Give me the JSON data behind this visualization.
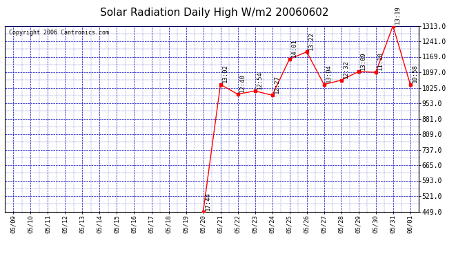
{
  "title": "Solar Radiation Daily High W/m2 20060602",
  "copyright": "Copyright 2006 Cantronics.com",
  "x_labels": [
    "05/09",
    "05/10",
    "05/11",
    "05/12",
    "05/13",
    "05/14",
    "05/15",
    "05/16",
    "05/17",
    "05/18",
    "05/19",
    "05/20",
    "05/21",
    "05/22",
    "05/23",
    "05/24",
    "05/25",
    "05/26",
    "05/27",
    "05/28",
    "05/29",
    "05/30",
    "05/31",
    "06/01"
  ],
  "data_points": [
    {
      "date": "05/20",
      "value": 449.0,
      "label": "17:44"
    },
    {
      "date": "05/21",
      "value": 1040.0,
      "label": "13:02"
    },
    {
      "date": "05/22",
      "value": 995.0,
      "label": "12:40"
    },
    {
      "date": "05/23",
      "value": 1010.0,
      "label": "12:54"
    },
    {
      "date": "05/24",
      "value": 990.0,
      "label": "12:27"
    },
    {
      "date": "05/25",
      "value": 1158.0,
      "label": "14:01"
    },
    {
      "date": "05/26",
      "value": 1192.0,
      "label": "13:22"
    },
    {
      "date": "05/27",
      "value": 1040.0,
      "label": "13:04"
    },
    {
      "date": "05/28",
      "value": 1060.0,
      "label": "12:32"
    },
    {
      "date": "05/29",
      "value": 1100.0,
      "label": "13:09"
    },
    {
      "date": "05/30",
      "value": 1097.0,
      "label": "11:10"
    },
    {
      "date": "05/31",
      "value": 1313.0,
      "label": "13:19"
    },
    {
      "date": "06/01",
      "value": 1040.0,
      "label": "10:58"
    }
  ],
  "yticks": [
    449.0,
    521.0,
    593.0,
    665.0,
    737.0,
    809.0,
    881.0,
    953.0,
    1025.0,
    1097.0,
    1169.0,
    1241.0,
    1313.0
  ],
  "line_color": "red",
  "marker_color": "red",
  "grid_color": "#0000bb",
  "background_color": "white",
  "plot_bg_color": "white",
  "title_fontsize": 11,
  "annotation_fontsize": 6.5,
  "copyright_fontsize": 6
}
